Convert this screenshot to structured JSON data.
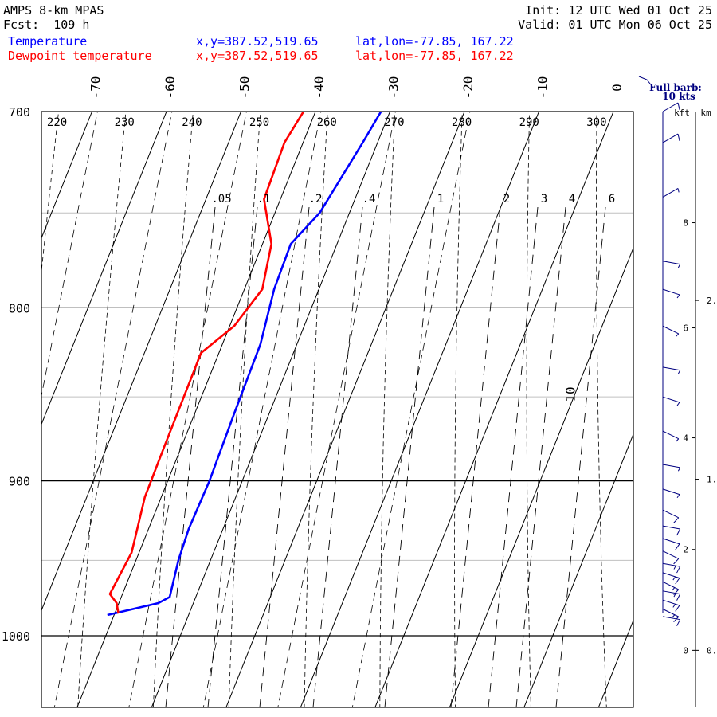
{
  "header": {
    "model": "AMPS 8-km MPAS",
    "forecast": "Fcst:  109 h",
    "init": "Init: 12 UTC Wed 01 Oct 25",
    "valid": "Valid: 01 UTC Mon 06 Oct 25",
    "temp_label": "Temperature",
    "dew_label": "Dewpoint temperature",
    "xy": "x,y=387.52,519.65",
    "latlon": "lat,lon=-77.85, 167.22"
  },
  "colors": {
    "temperature": "#0000ff",
    "dewpoint": "#ff0000",
    "barbs": "#000080",
    "lines": "#000000",
    "grid": "#c0c0c0"
  },
  "chart_data": {
    "type": "line",
    "title": "",
    "xlabel": "",
    "ylabel": "",
    "pressure_range_hPa": [
      700,
      1040
    ],
    "isobars_hPa": [
      700,
      800,
      900,
      1000
    ],
    "light_isobars_hPa": [
      750,
      850,
      950
    ],
    "isotherms_C": [
      -70,
      -60,
      -50,
      -40,
      -30,
      -20,
      -10,
      0,
      10
    ],
    "dry_adiabats_K": [
      220,
      230,
      240,
      250,
      260,
      270,
      280,
      290,
      300
    ],
    "mixing_ratio_labels": [
      ".05",
      ".1",
      ".2",
      ".4",
      "1",
      "2",
      "3",
      "4",
      "6"
    ],
    "series": [
      {
        "name": "Temperature",
        "points": [
          {
            "p": 700,
            "t": -31.2
          },
          {
            "p": 715,
            "t": -32.0
          },
          {
            "p": 750,
            "t": -34.0
          },
          {
            "p": 766,
            "t": -36.2
          },
          {
            "p": 790,
            "t": -36.0
          },
          {
            "p": 820,
            "t": -34.9
          },
          {
            "p": 860,
            "t": -34.7
          },
          {
            "p": 900,
            "t": -34.4
          },
          {
            "p": 930,
            "t": -34.6
          },
          {
            "p": 950,
            "t": -34.3
          },
          {
            "p": 974,
            "t": -33.5
          },
          {
            "p": 978,
            "t": -34.7
          },
          {
            "p": 986,
            "t": -40.9
          }
        ]
      },
      {
        "name": "Dewpoint temperature",
        "points": [
          {
            "p": 700,
            "t": -41.6
          },
          {
            "p": 715,
            "t": -42.5
          },
          {
            "p": 743,
            "t": -42.2
          },
          {
            "p": 766,
            "t": -38.8
          },
          {
            "p": 790,
            "t": -37.6
          },
          {
            "p": 810,
            "t": -39.4
          },
          {
            "p": 825,
            "t": -42.4
          },
          {
            "p": 880,
            "t": -42.3
          },
          {
            "p": 910,
            "t": -42.2
          },
          {
            "p": 945,
            "t": -41.0
          },
          {
            "p": 972,
            "t": -41.7
          },
          {
            "p": 978,
            "t": -40.3
          },
          {
            "p": 985,
            "t": -39.5
          }
        ]
      }
    ],
    "wind_barb_header": [
      "Full barb:",
      "10 kts"
    ],
    "height_axis_headers": [
      "kft",
      "km"
    ],
    "height_kft_ticks": [
      {
        "label": "0",
        "p": 1010
      },
      {
        "label": "2",
        "p": 943
      },
      {
        "label": "4",
        "p": 874
      },
      {
        "label": "6",
        "p": 811
      },
      {
        "label": "8",
        "p": 755
      }
    ],
    "height_km_ticks": [
      {
        "label": "0.",
        "p": 1010
      },
      {
        "label": "1.",
        "p": 899
      },
      {
        "label": "2.",
        "p": 796
      }
    ],
    "wind_profile": [
      {
        "p": 700,
        "spd_kt": 10
      },
      {
        "p": 715,
        "spd_kt": 10
      },
      {
        "p": 742,
        "spd_kt": 8
      },
      {
        "p": 775,
        "spd_kt": 5
      },
      {
        "p": 790,
        "spd_kt": 5
      },
      {
        "p": 810,
        "spd_kt": 5
      },
      {
        "p": 833,
        "spd_kt": 5
      },
      {
        "p": 850,
        "spd_kt": 5
      },
      {
        "p": 870,
        "spd_kt": 5
      },
      {
        "p": 890,
        "spd_kt": 5
      },
      {
        "p": 905,
        "spd_kt": 5
      },
      {
        "p": 918,
        "spd_kt": 10
      },
      {
        "p": 928,
        "spd_kt": 10
      },
      {
        "p": 936,
        "spd_kt": 10
      },
      {
        "p": 944,
        "spd_kt": 10
      },
      {
        "p": 952,
        "spd_kt": 15
      },
      {
        "p": 958,
        "spd_kt": 15
      },
      {
        "p": 964,
        "spd_kt": 15
      },
      {
        "p": 970,
        "spd_kt": 15
      },
      {
        "p": 976,
        "spd_kt": 15
      },
      {
        "p": 982,
        "spd_kt": 15
      },
      {
        "p": 987,
        "spd_kt": 10
      }
    ]
  }
}
